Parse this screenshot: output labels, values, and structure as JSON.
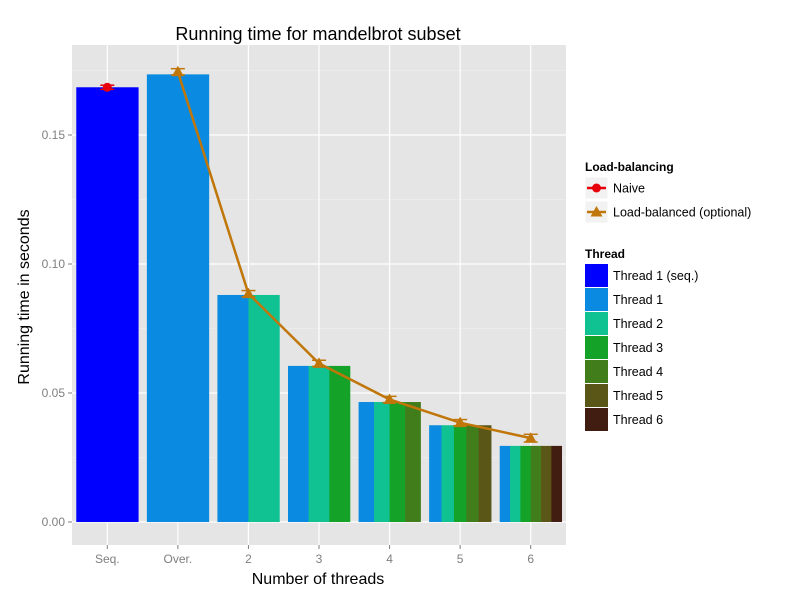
{
  "chart_data": {
    "type": "bar",
    "title": "Running time for mandelbrot subset",
    "xlabel": "Number of threads",
    "ylabel": "Running time in seconds",
    "ylim": [
      0,
      0.175
    ],
    "yticks": [
      "0.00",
      "0.05",
      "0.10",
      "0.15"
    ],
    "ytick_values": [
      0,
      0.05,
      0.1,
      0.15
    ],
    "categories": [
      "Seq.",
      "Over.",
      "2",
      "3",
      "4",
      "5",
      "6"
    ],
    "grid": true,
    "legend_position": "right",
    "thread_legend": {
      "title": "Thread",
      "entries": [
        {
          "label": "Thread 1 (seq.)",
          "color": "#0000ff"
        },
        {
          "label": "Thread 1",
          "color": "#0a8ae0"
        },
        {
          "label": "Thread 2",
          "color": "#10c292"
        },
        {
          "label": "Thread 3",
          "color": "#14a229"
        },
        {
          "label": "Thread 4",
          "color": "#417d1b"
        },
        {
          "label": "Thread 5",
          "color": "#5a5617"
        },
        {
          "label": "Thread 6",
          "color": "#411c10"
        }
      ]
    },
    "bars": [
      {
        "category": "Seq.",
        "threads": [
          "Thread 1 (seq.)"
        ],
        "value": 0.1685
      },
      {
        "category": "Over.",
        "threads": [
          "Thread 1"
        ],
        "value": 0.1735
      },
      {
        "category": "2",
        "threads": [
          "Thread 1",
          "Thread 2"
        ],
        "value": 0.088
      },
      {
        "category": "3",
        "threads": [
          "Thread 1",
          "Thread 2",
          "Thread 3"
        ],
        "value": 0.0605
      },
      {
        "category": "4",
        "threads": [
          "Thread 1",
          "Thread 2",
          "Thread 3",
          "Thread 4"
        ],
        "value": 0.0465
      },
      {
        "category": "5",
        "threads": [
          "Thread 1",
          "Thread 2",
          "Thread 3",
          "Thread 4",
          "Thread 5"
        ],
        "value": 0.0375
      },
      {
        "category": "6",
        "threads": [
          "Thread 1",
          "Thread 2",
          "Thread 3",
          "Thread 4",
          "Thread 5",
          "Thread 6"
        ],
        "value": 0.0295
      }
    ],
    "line_legend": {
      "title": "Load-balancing",
      "entries": [
        {
          "label": "Naive",
          "color": "#e8000b",
          "marker": "circle"
        },
        {
          "label": "Load-balanced (optional)",
          "color": "#c07608",
          "marker": "triangle"
        }
      ]
    },
    "series": [
      {
        "name": "Naive",
        "color": "#e8000b",
        "marker": "circle",
        "points": [
          {
            "x": "Seq.",
            "y": 0.1685,
            "err": 0.0008
          }
        ]
      },
      {
        "name": "Load-balanced (optional)",
        "color": "#c07608",
        "marker": "triangle",
        "points": [
          {
            "x": "Over.",
            "y": 0.1745,
            "err": 0.0012
          },
          {
            "x": "2",
            "y": 0.0885,
            "err": 0.0012
          },
          {
            "x": "3",
            "y": 0.0615,
            "err": 0.0012
          },
          {
            "x": "4",
            "y": 0.0475,
            "err": 0.0012
          },
          {
            "x": "5",
            "y": 0.0385,
            "err": 0.0012
          },
          {
            "x": "6",
            "y": 0.0325,
            "err": 0.0015
          }
        ]
      }
    ]
  }
}
